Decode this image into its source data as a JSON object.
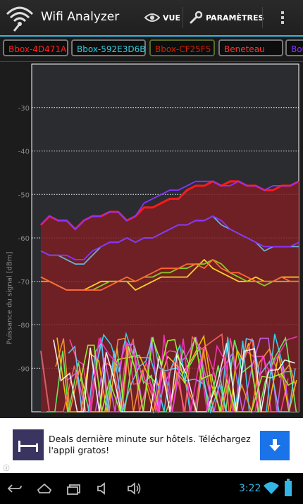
{
  "app": {
    "title": "Wifi Analyzer"
  },
  "actionbar": {
    "view_label": "VUE",
    "settings_label": "PARAMÈTRES"
  },
  "networks": [
    {
      "ssid": "Bbox-4D471A",
      "color": "#ff2020"
    },
    {
      "ssid": "Bbox-592E3D6B",
      "color": "#33ccdd"
    },
    {
      "ssid": "Bbox-CF25F5",
      "color": "#cc2200"
    },
    {
      "ssid": "Beneteau",
      "color": "#ff3333"
    },
    {
      "ssid": "Bou",
      "color": "#8833ff"
    }
  ],
  "chart_data": {
    "type": "line",
    "ylabel": "Puissance du signal [dBm]",
    "yticks": [
      -30,
      -40,
      -50,
      -60,
      -70,
      -80,
      -90
    ],
    "ylim": [
      -100,
      -20
    ],
    "grid": true,
    "series": [
      {
        "name": "Bbox-4D471A",
        "color": "#ff1a1a",
        "filled": true,
        "values": [
          -57,
          -55,
          -56,
          -56,
          -58,
          -56,
          -55,
          -55,
          -54,
          -54,
          -56,
          -55,
          -53,
          -53,
          -52,
          -51,
          -51,
          -49,
          -48,
          -48,
          -47,
          -48,
          -47,
          -47,
          -48,
          -48,
          -49,
          -49,
          -48,
          -48,
          -47
        ]
      },
      {
        "color": "#8833ff",
        "values": [
          -57,
          -55,
          -56,
          -56,
          -58,
          -56,
          -55,
          -55,
          -54,
          -54,
          -56,
          -55,
          -52,
          -51,
          -50,
          -49,
          -49,
          -48,
          -47,
          -47,
          -47,
          -48,
          -48,
          -47,
          -48,
          -48,
          -49,
          -48,
          -48,
          -48,
          -47
        ]
      },
      {
        "color": "#6ab0d8",
        "values": [
          -63,
          -64,
          -64,
          -65,
          -66,
          -66,
          -64,
          -62,
          -61,
          -61,
          -60,
          -61,
          -60,
          -60,
          -59,
          -58,
          -57,
          -57,
          -56,
          -56,
          -55,
          -57,
          -58,
          -59,
          -60,
          -61,
          -63,
          -62,
          -62,
          -62,
          -62
        ]
      },
      {
        "color": "#8833ff",
        "values": [
          -63,
          -64,
          -64,
          -64,
          -65,
          -65,
          -63,
          -62,
          -61,
          -61,
          -60,
          -61,
          -60,
          -60,
          -59,
          -58,
          -57,
          -57,
          -56,
          -56,
          -55,
          -56,
          -58,
          -59,
          -60,
          -61,
          -62,
          -62,
          -62,
          -62,
          -61
        ]
      },
      {
        "color": "#ffcc22",
        "values": [
          -69,
          -70,
          -71,
          -72,
          -72,
          -72,
          -71,
          -70,
          -70,
          -70,
          -70,
          -72,
          -71,
          -70,
          -69,
          -69,
          -69,
          -69,
          -67,
          -65,
          -67,
          -68,
          -69,
          -70,
          -70,
          -69,
          -70,
          -70,
          -69,
          -69,
          -69
        ]
      },
      {
        "color": "#88cc22",
        "values": [
          -70,
          -70,
          -71,
          -72,
          -72,
          -72,
          -72,
          -71,
          -70,
          -70,
          -70,
          -70,
          -69,
          -69,
          -68,
          -68,
          -67,
          -67,
          -66,
          -66,
          -65,
          -66,
          -68,
          -69,
          -70,
          -70,
          -71,
          -70,
          -70,
          -70,
          -70
        ]
      },
      {
        "color": "#ff6633",
        "values": [
          -69,
          -70,
          -71,
          -72,
          -72,
          -72,
          -72,
          -72,
          -71,
          -70,
          -69,
          -70,
          -69,
          -68,
          -67,
          -67,
          -67,
          -66,
          -66,
          -67,
          -65,
          -67,
          -68,
          -68,
          -69,
          -70,
          -70,
          -70,
          -69,
          -70,
          -70
        ]
      }
    ]
  }
}
